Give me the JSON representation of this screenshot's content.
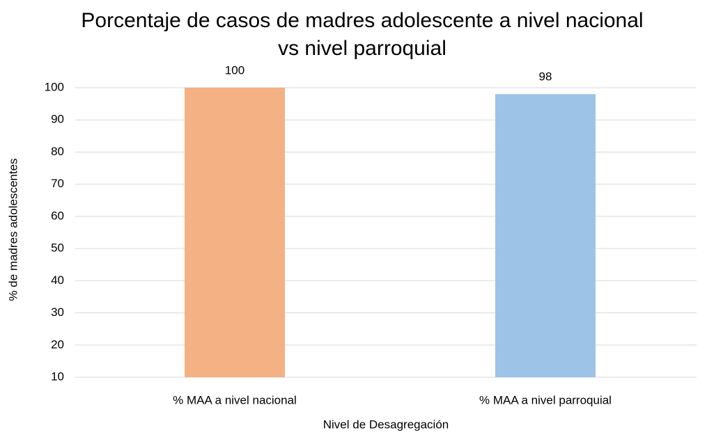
{
  "chart_data": {
    "type": "bar",
    "title": "Porcentaje de casos de madres adolescente a nivel nacional vs nivel parroquial",
    "x_label": "Nivel de Desagregación",
    "y_label": "% de madres adolescentes",
    "categories": [
      "% MAA a nivel nacional",
      "% MAA a nivel parroquial"
    ],
    "values": [
      100,
      98
    ],
    "colors": [
      "#f4b183",
      "#9dc3e6"
    ],
    "ylim": [
      10,
      100
    ],
    "yticks": [
      10,
      20,
      30,
      40,
      50,
      60,
      70,
      80,
      90,
      100
    ],
    "grid": true
  }
}
